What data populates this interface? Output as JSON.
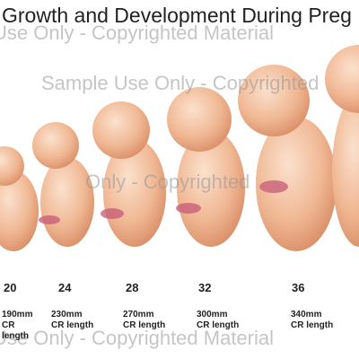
{
  "title": "Growth and Development During Preg",
  "watermarks": [
    "Use Only - Copyrighted Material",
    "Sample Use Only - Copyrighted",
    "Only - Copyrighted",
    "Use Only - Copyrighted Material"
  ],
  "stages": [
    {
      "week": "20",
      "length": "190mm",
      "caption": "CR length"
    },
    {
      "week": "24",
      "length": "230mm",
      "caption": "CR length"
    },
    {
      "week": "28",
      "length": "270mm",
      "caption": "CR length"
    },
    {
      "week": "32",
      "length": "300mm",
      "caption": "CR length"
    },
    {
      "week": "36",
      "length": "340mm",
      "caption": "CR length"
    }
  ]
}
